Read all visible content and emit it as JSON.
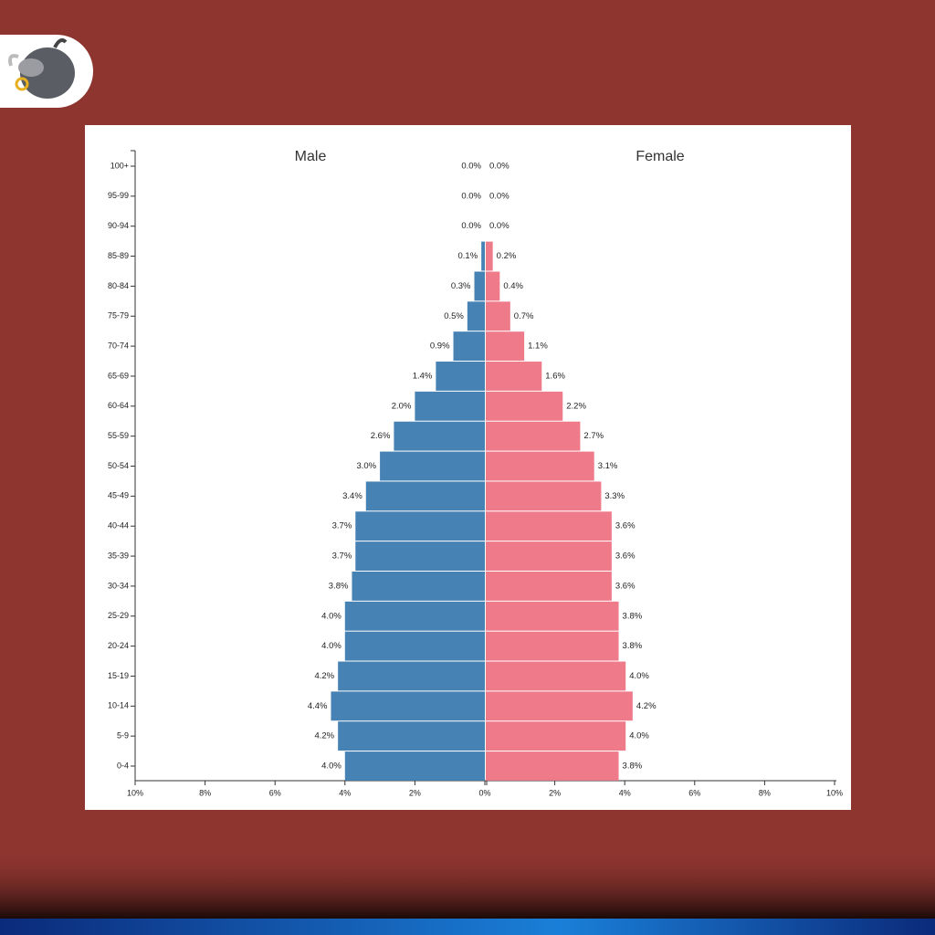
{
  "chart_data": {
    "type": "pyramid",
    "categories": [
      "0-4",
      "5-9",
      "10-14",
      "15-19",
      "20-24",
      "25-29",
      "30-34",
      "35-39",
      "40-44",
      "45-49",
      "50-54",
      "55-59",
      "60-64",
      "65-69",
      "70-74",
      "75-79",
      "80-84",
      "85-89",
      "90-94",
      "95-99",
      "100+"
    ],
    "series": [
      {
        "name": "Male",
        "side": "left",
        "color": "#4682b4",
        "values": [
          4.0,
          4.2,
          4.4,
          4.2,
          4.0,
          4.0,
          3.8,
          3.7,
          3.7,
          3.4,
          3.0,
          2.6,
          2.0,
          1.4,
          0.9,
          0.5,
          0.3,
          0.1,
          0.0,
          0.0,
          0.0
        ],
        "value_labels": [
          "4.0%",
          "4.2%",
          "4.4%",
          "4.2%",
          "4.0%",
          "4.0%",
          "3.8%",
          "3.7%",
          "3.7%",
          "3.4%",
          "3.0%",
          "2.6%",
          "2.0%",
          "1.4%",
          "0.9%",
          "0.5%",
          "0.3%",
          "0.1%",
          "0.0%",
          "0.0%",
          "0.0%"
        ]
      },
      {
        "name": "Female",
        "side": "right",
        "color": "#ef7b8a",
        "values": [
          3.8,
          4.0,
          4.2,
          4.0,
          3.8,
          3.8,
          3.6,
          3.6,
          3.6,
          3.3,
          3.1,
          2.7,
          2.2,
          1.6,
          1.1,
          0.7,
          0.4,
          0.2,
          0.0,
          0.0,
          0.0
        ],
        "value_labels": [
          "3.8%",
          "4.0%",
          "4.2%",
          "4.0%",
          "3.8%",
          "3.8%",
          "3.6%",
          "3.6%",
          "3.6%",
          "3.3%",
          "3.1%",
          "2.7%",
          "2.2%",
          "1.6%",
          "1.1%",
          "0.7%",
          "0.4%",
          "0.2%",
          "0.0%",
          "0.0%",
          "0.0%"
        ]
      }
    ],
    "xlim": [
      0,
      10
    ],
    "xticks": [
      {
        "value": 0,
        "label": "0%"
      },
      {
        "value": 2,
        "label": "2%"
      },
      {
        "value": 4,
        "label": "4%"
      },
      {
        "value": 6,
        "label": "6%"
      },
      {
        "value": 8,
        "label": "8%"
      },
      {
        "value": 10,
        "label": "10%"
      }
    ]
  }
}
